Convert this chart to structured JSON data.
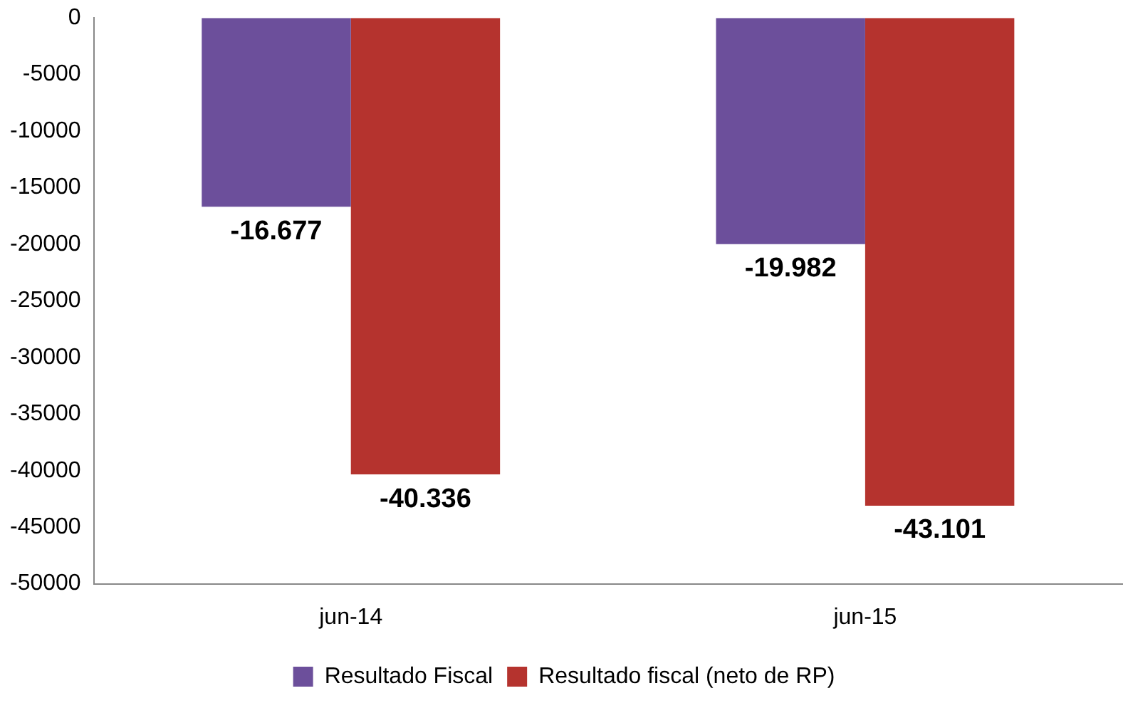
{
  "chart_data": {
    "type": "bar",
    "categories": [
      "jun-14",
      "jun-15"
    ],
    "series": [
      {
        "name": "Resultado Fiscal",
        "color": "#6c4f9b",
        "values": [
          -16677,
          -19982
        ],
        "value_labels": [
          "-16.677",
          "-19.982"
        ]
      },
      {
        "name": "Resultado fiscal (neto de RP)",
        "color": "#b5332e",
        "values": [
          -40336,
          -43101
        ],
        "value_labels": [
          "-40.336",
          "-43.101"
        ]
      }
    ],
    "ylim": [
      -50000,
      0
    ],
    "yticks": [
      0,
      -5000,
      -10000,
      -15000,
      -20000,
      -25000,
      -30000,
      -35000,
      -40000,
      -45000,
      -50000
    ],
    "grid": false,
    "legend": "bottom"
  }
}
